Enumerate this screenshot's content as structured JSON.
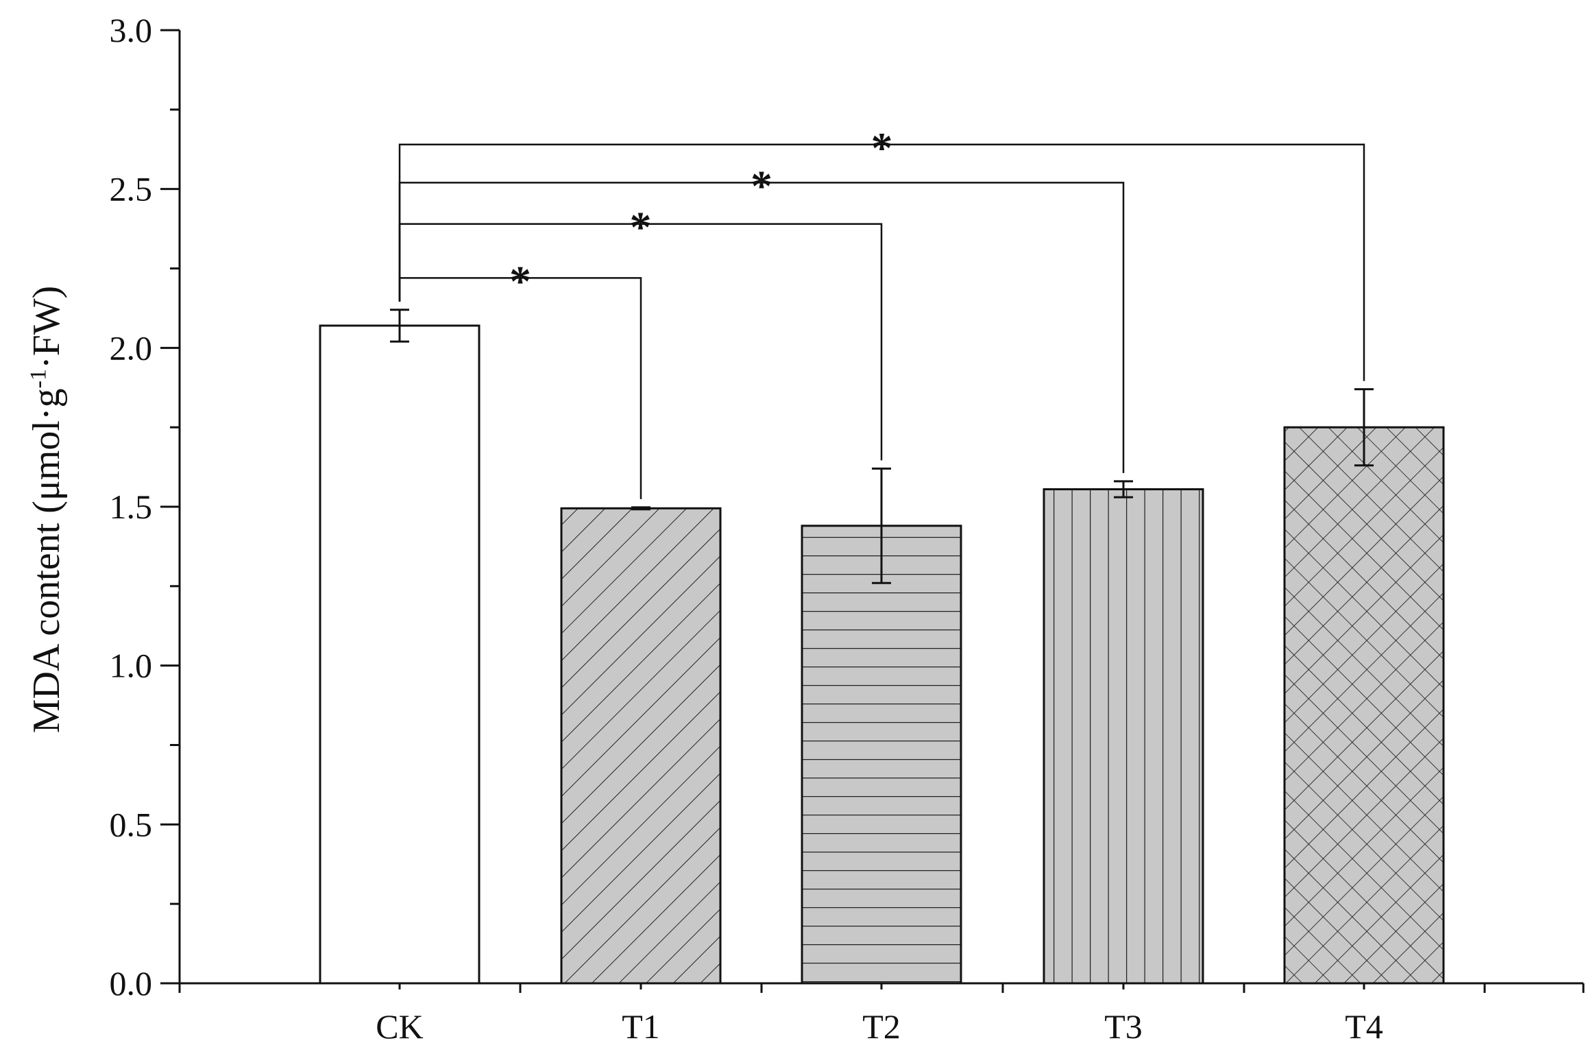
{
  "chart_data": {
    "type": "bar",
    "categories": [
      "CK",
      "T1",
      "T2",
      "T3",
      "T4"
    ],
    "values": [
      2.07,
      1.495,
      1.44,
      1.555,
      1.75
    ],
    "errors": [
      0.05,
      0.003,
      0.18,
      0.025,
      0.12
    ],
    "patterns": [
      "none",
      "diagonal",
      "horizontal",
      "vertical",
      "crosshatch"
    ],
    "bar_colors": [
      "#ffffff",
      "#c8c8c8",
      "#c8c8c8",
      "#c8c8c8",
      "#c8c8c8"
    ],
    "ylabel_prefix": "MDA content (μmol·g",
    "ylabel_sup": "-1",
    "ylabel_suffix": "·FW)",
    "ylim": [
      0,
      3.0
    ],
    "y_ticks": [
      "0.0",
      "0.5",
      "1.0",
      "1.5",
      "2.0",
      "2.5",
      "3.0"
    ],
    "grid": false,
    "significance": [
      {
        "from": "CK",
        "to": "T1",
        "level": 2.22,
        "label": "*"
      },
      {
        "from": "CK",
        "to": "T2",
        "level": 2.39,
        "label": "*"
      },
      {
        "from": "CK",
        "to": "T3",
        "level": 2.52,
        "label": "*"
      },
      {
        "from": "CK",
        "to": "T4",
        "level": 2.64,
        "label": "*"
      }
    ]
  }
}
